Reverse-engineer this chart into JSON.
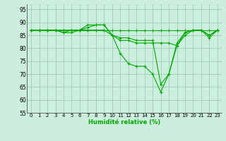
{
  "xlabel": "Humidité relative (%)",
  "background_color": "#cceedd",
  "grid_color": "#99ccbb",
  "line_color": "#00aa00",
  "xlim": [
    -0.5,
    23.5
  ],
  "ylim": [
    55,
    97
  ],
  "yticks": [
    55,
    60,
    65,
    70,
    75,
    80,
    85,
    90,
    95
  ],
  "xticks": [
    0,
    1,
    2,
    3,
    4,
    5,
    6,
    7,
    8,
    9,
    10,
    11,
    12,
    13,
    14,
    15,
    16,
    17,
    18,
    19,
    20,
    21,
    22,
    23
  ],
  "series": [
    [
      87,
      87,
      87,
      87,
      87,
      87,
      87,
      87,
      87,
      87,
      87,
      87,
      87,
      87,
      87,
      87,
      87,
      87,
      87,
      87,
      87,
      87,
      87,
      87
    ],
    [
      87,
      87,
      87,
      87,
      86,
      86,
      87,
      89,
      89,
      89,
      85,
      83,
      83,
      82,
      82,
      82,
      82,
      82,
      81,
      85,
      87,
      87,
      84,
      87
    ],
    [
      87,
      87,
      87,
      87,
      86,
      87,
      87,
      88,
      89,
      89,
      85,
      84,
      84,
      83,
      83,
      83,
      66,
      70,
      81,
      86,
      87,
      87,
      85,
      87
    ],
    [
      87,
      87,
      87,
      87,
      87,
      87,
      87,
      87,
      87,
      87,
      85,
      78,
      74,
      73,
      73,
      70,
      63,
      70,
      82,
      86,
      87,
      87,
      85,
      87
    ]
  ]
}
